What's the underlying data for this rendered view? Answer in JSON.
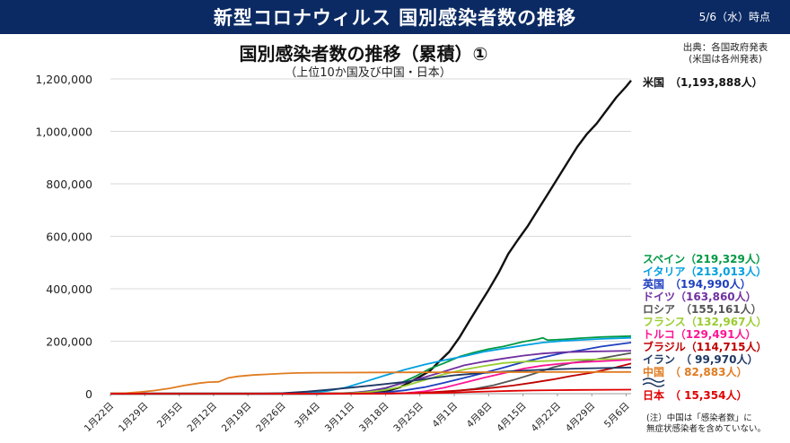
{
  "header": {
    "title": "新型コロナウィルス 国別感染者数の推移",
    "date": "5/6（水）時点"
  },
  "source": {
    "line1": "出典：各国政府発表",
    "line2": "(米国は各州発表)"
  },
  "note": {
    "line1": "(注）中国は「感染者数」に",
    "line2": "無症状感染者を含めていない。"
  },
  "chart_data": {
    "type": "line",
    "title": "国別感染者数の推移（累積）①",
    "subtitle": "（上位10か国及び中国・日本）",
    "x_ticks": [
      "1月22日",
      "1月29日",
      "2月5日",
      "2月12日",
      "2月19日",
      "2月26日",
      "3月4日",
      "3月11日",
      "3月18日",
      "3月25日",
      "4月1日",
      "4月8日",
      "4月15日",
      "4月22日",
      "4月29日",
      "5月6日"
    ],
    "x_range": [
      "1月22日",
      "5月6日"
    ],
    "y_ticks": [
      "0",
      "200,000",
      "400,000",
      "600,000",
      "800,000",
      "1,000,000",
      "1,200,000"
    ],
    "ylim": [
      0,
      1200000
    ],
    "grid": "horizontal",
    "legend_position": "right",
    "series": [
      {
        "name": "米国",
        "label_text": "米国　（1,193,888人）",
        "final_value": 1193888,
        "color": "#111111",
        "points": [
          [
            0,
            0
          ],
          [
            35,
            20
          ],
          [
            42,
            100
          ],
          [
            49,
            600
          ],
          [
            52,
            3000
          ],
          [
            55,
            7000
          ],
          [
            57,
            14000
          ],
          [
            59,
            25000
          ],
          [
            61,
            44000
          ],
          [
            63,
            65000
          ],
          [
            65,
            86000
          ],
          [
            67,
            124000
          ],
          [
            69,
            160000
          ],
          [
            71,
            213000
          ],
          [
            73,
            275000
          ],
          [
            75,
            336000
          ],
          [
            77,
            396000
          ],
          [
            79,
            460000
          ],
          [
            81,
            533000
          ],
          [
            83,
            588000
          ],
          [
            85,
            640000
          ],
          [
            87,
            700000
          ],
          [
            89,
            760000
          ],
          [
            91,
            820000
          ],
          [
            93,
            880000
          ],
          [
            95,
            940000
          ],
          [
            97,
            990000
          ],
          [
            99,
            1030000
          ],
          [
            101,
            1080000
          ],
          [
            103,
            1130000
          ],
          [
            105,
            1171000
          ],
          [
            106,
            1193888
          ]
        ]
      },
      {
        "name": "スペイン",
        "label_text": "スペイン（219,329人）",
        "final_value": 219329,
        "color": "#009944",
        "points": [
          [
            0,
            0
          ],
          [
            38,
            0
          ],
          [
            45,
            400
          ],
          [
            50,
            4000
          ],
          [
            53,
            11000
          ],
          [
            56,
            20000
          ],
          [
            59,
            40000
          ],
          [
            62,
            65000
          ],
          [
            65,
            95000
          ],
          [
            68,
            117000
          ],
          [
            71,
            141000
          ],
          [
            74,
            157000
          ],
          [
            77,
            170000
          ],
          [
            80,
            180000
          ],
          [
            84,
            198000
          ],
          [
            87,
            208000
          ],
          [
            88,
            213000
          ],
          [
            89,
            204000
          ],
          [
            92,
            207000
          ],
          [
            96,
            212000
          ],
          [
            100,
            216000
          ],
          [
            106,
            219329
          ]
        ]
      },
      {
        "name": "イタリア",
        "label_text": "イタリア（213,013人）",
        "final_value": 213013,
        "color": "#00a0e0",
        "points": [
          [
            0,
            0
          ],
          [
            30,
            0
          ],
          [
            33,
            100
          ],
          [
            36,
            1000
          ],
          [
            40,
            4000
          ],
          [
            44,
            10000
          ],
          [
            48,
            24000
          ],
          [
            52,
            47000
          ],
          [
            56,
            70000
          ],
          [
            60,
            92000
          ],
          [
            64,
            111000
          ],
          [
            68,
            128000
          ],
          [
            72,
            143000
          ],
          [
            76,
            160000
          ],
          [
            80,
            172000
          ],
          [
            84,
            184000
          ],
          [
            88,
            195000
          ],
          [
            92,
            201000
          ],
          [
            96,
            205000
          ],
          [
            100,
            209000
          ],
          [
            106,
            213013
          ]
        ]
      },
      {
        "name": "英国",
        "label_text": "英国　（194,990人）",
        "final_value": 194990,
        "color": "#1f3fbf",
        "points": [
          [
            0,
            0
          ],
          [
            40,
            0
          ],
          [
            47,
            400
          ],
          [
            52,
            1500
          ],
          [
            56,
            5000
          ],
          [
            60,
            13000
          ],
          [
            64,
            25000
          ],
          [
            68,
            42000
          ],
          [
            72,
            60000
          ],
          [
            76,
            79000
          ],
          [
            80,
            99000
          ],
          [
            84,
            120000
          ],
          [
            88,
            138000
          ],
          [
            92,
            155000
          ],
          [
            96,
            166000
          ],
          [
            100,
            180000
          ],
          [
            106,
            194990
          ]
        ]
      },
      {
        "name": "ドイツ",
        "label_text": "ドイツ（163,860人）",
        "final_value": 163860,
        "color": "#7030a0",
        "points": [
          [
            0,
            0
          ],
          [
            40,
            0
          ],
          [
            44,
            300
          ],
          [
            48,
            2000
          ],
          [
            52,
            8000
          ],
          [
            56,
            22000
          ],
          [
            60,
            43000
          ],
          [
            64,
            63000
          ],
          [
            68,
            85000
          ],
          [
            72,
            108000
          ],
          [
            76,
            122000
          ],
          [
            80,
            134000
          ],
          [
            84,
            145000
          ],
          [
            88,
            153000
          ],
          [
            92,
            158000
          ],
          [
            96,
            160000
          ],
          [
            106,
            163860
          ]
        ]
      },
      {
        "name": "ロシア",
        "label_text": "ロシア　（155,161人）",
        "final_value": 155161,
        "color": "#555555",
        "points": [
          [
            0,
            0
          ],
          [
            50,
            0
          ],
          [
            56,
            300
          ],
          [
            62,
            1500
          ],
          [
            66,
            4000
          ],
          [
            70,
            10000
          ],
          [
            74,
            18000
          ],
          [
            78,
            32000
          ],
          [
            82,
            52000
          ],
          [
            86,
            75000
          ],
          [
            90,
            100000
          ],
          [
            94,
            118000
          ],
          [
            98,
            128000
          ],
          [
            102,
            142000
          ],
          [
            106,
            155161
          ]
        ]
      },
      {
        "name": "フランス",
        "label_text": "フランス（132,967人）",
        "final_value": 132967,
        "color": "#9acd32",
        "points": [
          [
            0,
            0
          ],
          [
            38,
            0
          ],
          [
            43,
            300
          ],
          [
            48,
            1500
          ],
          [
            52,
            5000
          ],
          [
            56,
            14000
          ],
          [
            60,
            30000
          ],
          [
            64,
            52000
          ],
          [
            68,
            75000
          ],
          [
            72,
            92000
          ],
          [
            76,
            105000
          ],
          [
            80,
            117000
          ],
          [
            84,
            122000
          ],
          [
            88,
            124000
          ],
          [
            92,
            127000
          ],
          [
            96,
            130000
          ],
          [
            106,
            132967
          ]
        ]
      },
      {
        "name": "トルコ",
        "label_text": "トルコ（129,491人）",
        "final_value": 129491,
        "color": "#ff1493",
        "points": [
          [
            0,
            0
          ],
          [
            52,
            0
          ],
          [
            56,
            300
          ],
          [
            60,
            2000
          ],
          [
            64,
            9000
          ],
          [
            68,
            23000
          ],
          [
            72,
            42000
          ],
          [
            76,
            61000
          ],
          [
            80,
            78000
          ],
          [
            84,
            95000
          ],
          [
            88,
            107000
          ],
          [
            92,
            115000
          ],
          [
            96,
            120000
          ],
          [
            106,
            129491
          ]
        ]
      },
      {
        "name": "ブラジル",
        "label_text": "ブラジル（114,715人）",
        "final_value": 114715,
        "color": "#c00000",
        "points": [
          [
            0,
            0
          ],
          [
            52,
            0
          ],
          [
            57,
            400
          ],
          [
            62,
            2000
          ],
          [
            66,
            6000
          ],
          [
            70,
            11000
          ],
          [
            74,
            16000
          ],
          [
            78,
            23000
          ],
          [
            82,
            31000
          ],
          [
            86,
            42000
          ],
          [
            90,
            54000
          ],
          [
            94,
            68000
          ],
          [
            98,
            80000
          ],
          [
            102,
            96000
          ],
          [
            106,
            114715
          ]
        ]
      },
      {
        "name": "イラン",
        "label_text": "イラン　（ 99,970人）",
        "final_value": 99970,
        "color": "#1f3864",
        "points": [
          [
            0,
            0
          ],
          [
            28,
            0
          ],
          [
            31,
            300
          ],
          [
            35,
            2000
          ],
          [
            40,
            8000
          ],
          [
            45,
            16000
          ],
          [
            50,
            25000
          ],
          [
            55,
            35000
          ],
          [
            60,
            45000
          ],
          [
            65,
            58000
          ],
          [
            70,
            70000
          ],
          [
            75,
            78000
          ],
          [
            80,
            84000
          ],
          [
            85,
            89000
          ],
          [
            90,
            93000
          ],
          [
            96,
            96000
          ],
          [
            106,
            99970
          ]
        ]
      },
      {
        "name": "中国",
        "label_text": "中国　（ 82,883人）",
        "final_value": 82883,
        "color": "#e07b20",
        "points": [
          [
            0,
            547
          ],
          [
            3,
            2000
          ],
          [
            6,
            6000
          ],
          [
            9,
            12000
          ],
          [
            12,
            20000
          ],
          [
            15,
            31000
          ],
          [
            18,
            40000
          ],
          [
            20,
            44000
          ],
          [
            22,
            45000
          ],
          [
            24,
            60000
          ],
          [
            26,
            66000
          ],
          [
            29,
            71000
          ],
          [
            32,
            74000
          ],
          [
            35,
            77000
          ],
          [
            38,
            79000
          ],
          [
            42,
            80000
          ],
          [
            48,
            80500
          ],
          [
            55,
            81000
          ],
          [
            62,
            81500
          ],
          [
            70,
            81800
          ],
          [
            80,
            82000
          ],
          [
            90,
            82800
          ],
          [
            106,
            82883
          ]
        ]
      },
      {
        "name": "日本",
        "label_text": "日本　（ 15,354人）",
        "final_value": 15354,
        "color": "#e00000",
        "points": [
          [
            0,
            0
          ],
          [
            20,
            50
          ],
          [
            35,
            300
          ],
          [
            45,
            700
          ],
          [
            55,
            1100
          ],
          [
            62,
            1800
          ],
          [
            66,
            2700
          ],
          [
            70,
            4600
          ],
          [
            74,
            6700
          ],
          [
            78,
            9000
          ],
          [
            82,
            10800
          ],
          [
            86,
            12400
          ],
          [
            90,
            13400
          ],
          [
            96,
            14500
          ],
          [
            106,
            15354
          ]
        ]
      }
    ]
  }
}
